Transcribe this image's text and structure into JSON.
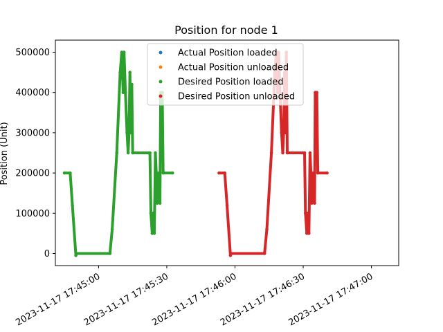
{
  "chart_data": {
    "type": "scatter",
    "title": "Position for node 1",
    "xlabel": "",
    "ylabel": "Position (Unit)",
    "x_unit": "seconds after 2023-11-17 17:44:45",
    "xlim": [
      -4,
      147
    ],
    "ylim": [
      -30000,
      530000
    ],
    "x_ticks": [
      {
        "x": 15,
        "label": "2023-11-17 17:45:00"
      },
      {
        "x": 45,
        "label": "2023-11-17 17:45:30"
      },
      {
        "x": 75,
        "label": "2023-11-17 17:46:00"
      },
      {
        "x": 105,
        "label": "2023-11-17 17:46:30"
      },
      {
        "x": 135,
        "label": "2023-11-17 17:47:00"
      }
    ],
    "y_ticks": [
      0,
      100000,
      200000,
      300000,
      400000,
      500000
    ],
    "y_tick_labels": [
      "0",
      "100000",
      "200000",
      "300000",
      "400000",
      "500000"
    ],
    "grid": false,
    "legend_position": "top-center",
    "series": [
      {
        "name": "Actual Position loaded",
        "color": "#1f77b4",
        "points": []
      },
      {
        "name": "Actual Position unloaded",
        "color": "#ff7f0e",
        "points": []
      },
      {
        "name": "Desired Position loaded",
        "color": "#2ca02c",
        "points": [
          [
            0,
            200000
          ],
          [
            2.5,
            200000
          ],
          [
            3.5,
            120000
          ],
          [
            5,
            -5000
          ],
          [
            5.3,
            0
          ],
          [
            20,
            0
          ],
          [
            21,
            60000
          ],
          [
            23,
            250000
          ],
          [
            24.5,
            450000
          ],
          [
            25.2,
            500000
          ],
          [
            25.8,
            400000
          ],
          [
            26.2,
            500000
          ],
          [
            26.8,
            400000
          ],
          [
            27.5,
            300000
          ],
          [
            28,
            250000
          ],
          [
            28.4,
            300000
          ],
          [
            28.8,
            450000
          ],
          [
            29.2,
            300000
          ],
          [
            29.6,
            420000
          ],
          [
            30,
            250000
          ],
          [
            37,
            250000
          ],
          [
            37.6,
            250000
          ],
          [
            38,
            100000
          ],
          [
            38.6,
            50000
          ],
          [
            39,
            100000
          ],
          [
            39.5,
            50000
          ],
          [
            40,
            250000
          ],
          [
            40.4,
            200000
          ],
          [
            40.8,
            125000
          ],
          [
            41.5,
            200000
          ],
          [
            42,
            125000
          ],
          [
            42.3,
            400000
          ],
          [
            42.6,
            250000
          ],
          [
            43,
            400000
          ],
          [
            43.4,
            200000
          ],
          [
            47.5,
            200000
          ]
        ]
      },
      {
        "name": "Desired Position unloaded",
        "color": "#d62728",
        "points": [
          [
            68,
            200000
          ],
          [
            70.5,
            200000
          ],
          [
            71.5,
            120000
          ],
          [
            73,
            -5000
          ],
          [
            73.3,
            0
          ],
          [
            88,
            0
          ],
          [
            89,
            60000
          ],
          [
            91,
            250000
          ],
          [
            92.5,
            450000
          ],
          [
            93.2,
            500000
          ],
          [
            93.8,
            400000
          ],
          [
            94.2,
            500000
          ],
          [
            94.8,
            400000
          ],
          [
            95.5,
            300000
          ],
          [
            96,
            250000
          ],
          [
            96.4,
            300000
          ],
          [
            96.8,
            450000
          ],
          [
            97.2,
            300000
          ],
          [
            97.6,
            500000
          ],
          [
            98,
            250000
          ],
          [
            105,
            250000
          ],
          [
            105.6,
            250000
          ],
          [
            106,
            100000
          ],
          [
            106.6,
            50000
          ],
          [
            107,
            100000
          ],
          [
            107.5,
            50000
          ],
          [
            108,
            250000
          ],
          [
            108.4,
            200000
          ],
          [
            108.8,
            125000
          ],
          [
            109.5,
            200000
          ],
          [
            110,
            125000
          ],
          [
            110.3,
            400000
          ],
          [
            110.6,
            250000
          ],
          [
            111,
            400000
          ],
          [
            111.4,
            200000
          ],
          [
            115.5,
            200000
          ]
        ]
      }
    ]
  }
}
